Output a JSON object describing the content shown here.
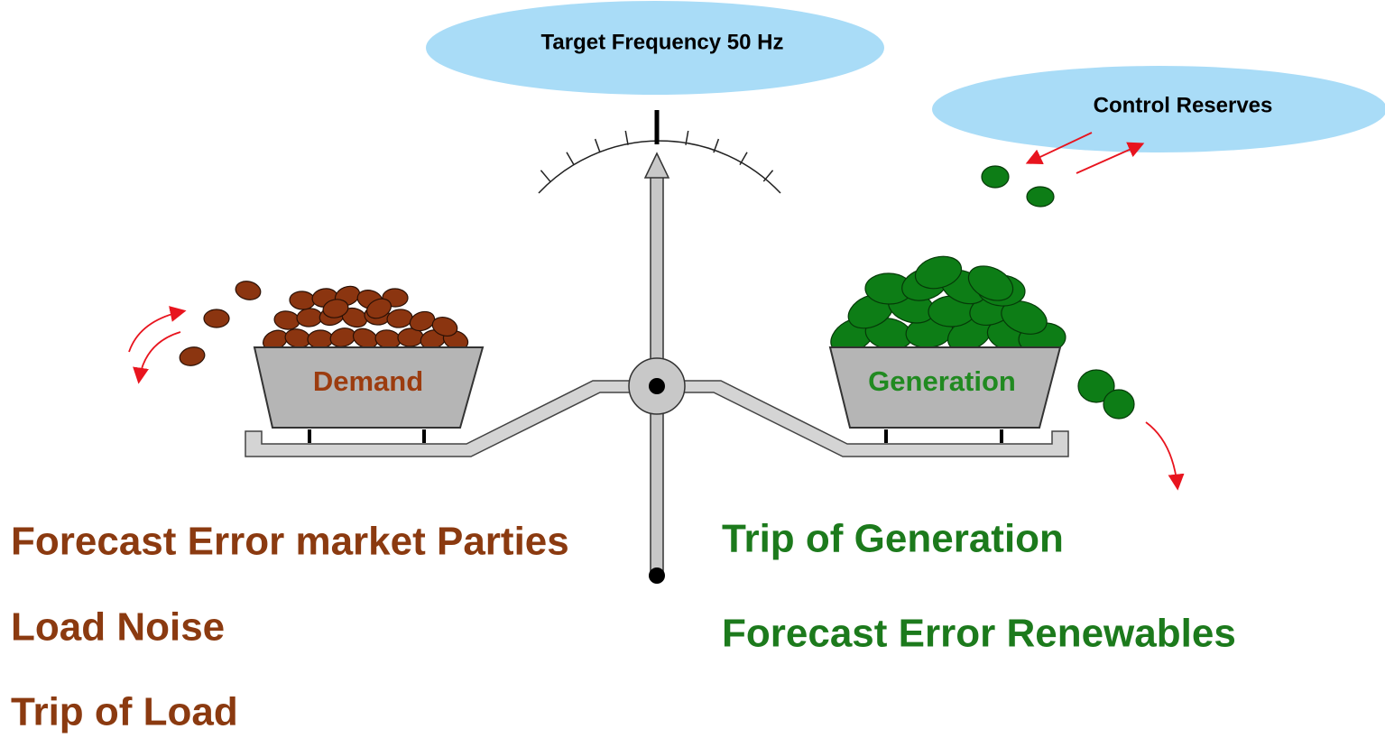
{
  "header": {
    "title": "Target Frequency 50 Hz"
  },
  "labels": {
    "control_reserves": "Control Reserves",
    "demand": "Demand",
    "generation": "Generation"
  },
  "left_factors": [
    "Forecast Error market Parties",
    "Load Noise",
    "Trip of Load"
  ],
  "right_factors": [
    "Trip of Generation",
    "Forecast Error Renewables"
  ]
}
